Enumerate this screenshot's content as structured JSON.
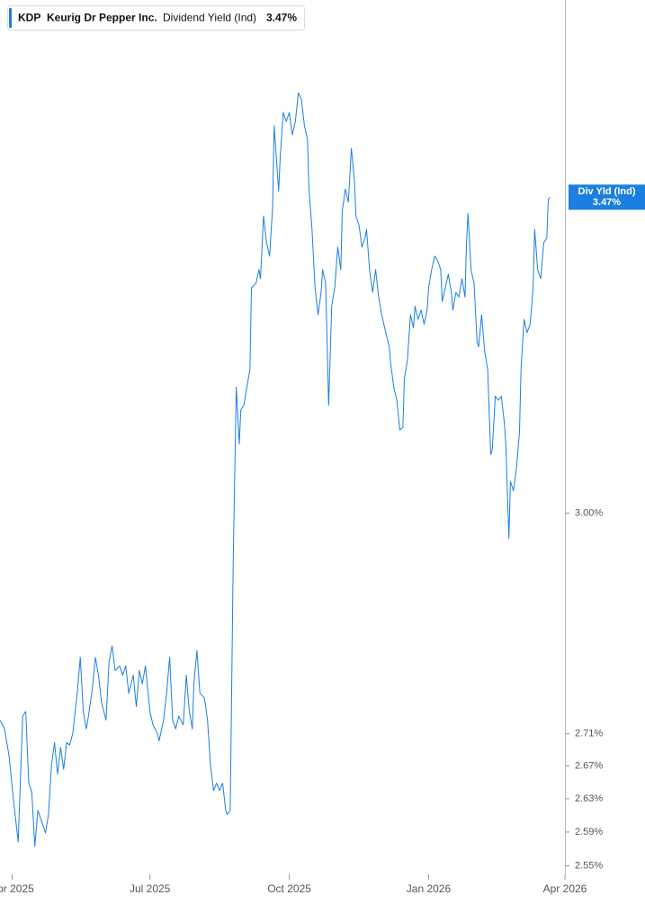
{
  "chart_data": {
    "type": "line",
    "ticker": "KDP",
    "company": "Keurig Dr Pepper Inc.",
    "current": {
      "name": "Div Yld (Ind)",
      "value": 3.47,
      "label": "3.47%"
    },
    "y_scale": "log",
    "xlim": [
      -8,
      365
    ],
    "ylim": [
      2.54,
      3.8
    ],
    "xticks": [
      {
        "value": 0,
        "label": "Apr 2025"
      },
      {
        "value": 91,
        "label": "Jul 2025"
      },
      {
        "value": 183,
        "label": "Oct 2025"
      },
      {
        "value": 275,
        "label": "Jan 2026"
      },
      {
        "value": 365,
        "label": "Apr 2026"
      }
    ],
    "yticks": [
      {
        "value": 2.55,
        "label": "2.55%"
      },
      {
        "value": 2.59,
        "label": "2.59%"
      },
      {
        "value": 2.63,
        "label": "2.63%"
      },
      {
        "value": 2.67,
        "label": "2.67%"
      },
      {
        "value": 2.71,
        "label": "2.71%"
      },
      {
        "value": 3,
        "label": "3.00%"
      }
    ],
    "x": [
      -8,
      -5,
      -2,
      1,
      4,
      7,
      9,
      11,
      13,
      15,
      17,
      20,
      22,
      24,
      26,
      28,
      30,
      32,
      34,
      36,
      38,
      40,
      42,
      43,
      45,
      47,
      49,
      50,
      53,
      55,
      57,
      59,
      62,
      64,
      66,
      68,
      71,
      73,
      75,
      77,
      80,
      82,
      84,
      86,
      88,
      91,
      93,
      96,
      97,
      100,
      102,
      104,
      106,
      108,
      110,
      113,
      115,
      117,
      119,
      120,
      122,
      124,
      127,
      129,
      131,
      133,
      135,
      137,
      139,
      141,
      142,
      144,
      146,
      148,
      150,
      151,
      153,
      155,
      157,
      158,
      161,
      163,
      164,
      166,
      168,
      170,
      172,
      173,
      176,
      177,
      179,
      181,
      183,
      185,
      187,
      189,
      191,
      193,
      195,
      196,
      198,
      200,
      202,
      204,
      205,
      207,
      209,
      211,
      213,
      215,
      217,
      218,
      220,
      222,
      224,
      226,
      227,
      229,
      231,
      233,
      234,
      236,
      238,
      240,
      242,
      244,
      246,
      249,
      250,
      252,
      254,
      256,
      258,
      259,
      261,
      263,
      265,
      266,
      268,
      270,
      272,
      274,
      275,
      277,
      279,
      281,
      283,
      284,
      286,
      288,
      290,
      291,
      293,
      295,
      297,
      299,
      300,
      301,
      303,
      305,
      307,
      308,
      310,
      312,
      314,
      316,
      317,
      319,
      321,
      323,
      325,
      326,
      328,
      329,
      331,
      333,
      335,
      336,
      338,
      340,
      342,
      344,
      345,
      347,
      349,
      351,
      353,
      354,
      355
    ],
    "series": [
      {
        "name": "Dividend Yield (Ind)",
        "color": "#1a7fe0",
        "values": [
          2.727,
          2.716,
          2.682,
          2.627,
          2.578,
          2.732,
          2.738,
          2.649,
          2.638,
          2.573,
          2.616,
          2.6,
          2.589,
          2.611,
          2.671,
          2.699,
          2.66,
          2.693,
          2.666,
          2.699,
          2.696,
          2.71,
          2.744,
          2.761,
          2.807,
          2.738,
          2.716,
          2.727,
          2.767,
          2.807,
          2.784,
          2.75,
          2.727,
          2.801,
          2.822,
          2.79,
          2.796,
          2.784,
          2.796,
          2.761,
          2.784,
          2.744,
          2.79,
          2.773,
          2.796,
          2.738,
          2.721,
          2.71,
          2.701,
          2.727,
          2.761,
          2.807,
          2.727,
          2.716,
          2.732,
          2.721,
          2.784,
          2.738,
          2.716,
          2.773,
          2.816,
          2.761,
          2.755,
          2.727,
          2.671,
          2.64,
          2.649,
          2.64,
          2.649,
          2.616,
          2.611,
          2.616,
          2.938,
          3.179,
          3.097,
          3.146,
          3.153,
          3.179,
          3.205,
          3.328,
          3.335,
          3.356,
          3.342,
          3.44,
          3.398,
          3.377,
          3.455,
          3.586,
          3.48,
          3.534,
          3.608,
          3.593,
          3.608,
          3.571,
          3.593,
          3.641,
          3.63,
          3.586,
          3.564,
          3.483,
          3.419,
          3.328,
          3.287,
          3.321,
          3.356,
          3.335,
          3.153,
          3.3,
          3.328,
          3.391,
          3.356,
          3.448,
          3.483,
          3.462,
          3.549,
          3.497,
          3.44,
          3.426,
          3.391,
          3.405,
          3.419,
          3.356,
          3.321,
          3.356,
          3.314,
          3.287,
          3.267,
          3.239,
          3.213,
          3.179,
          3.16,
          3.117,
          3.121,
          3.192,
          3.219,
          3.287,
          3.267,
          3.3,
          3.28,
          3.294,
          3.273,
          3.294,
          3.328,
          3.356,
          3.377,
          3.37,
          3.356,
          3.307,
          3.328,
          3.349,
          3.321,
          3.294,
          3.321,
          3.314,
          3.342,
          3.314,
          3.398,
          3.444,
          3.356,
          3.335,
          3.246,
          3.239,
          3.287,
          3.232,
          3.205,
          3.082,
          3.088,
          3.166,
          3.16,
          3.166,
          3.127,
          3.095,
          2.965,
          3.044,
          3.031,
          3.063,
          3.114,
          3.205,
          3.28,
          3.26,
          3.273,
          3.328,
          3.419,
          3.356,
          3.342,
          3.398,
          3.405,
          3.466,
          3.47
        ]
      }
    ]
  }
}
